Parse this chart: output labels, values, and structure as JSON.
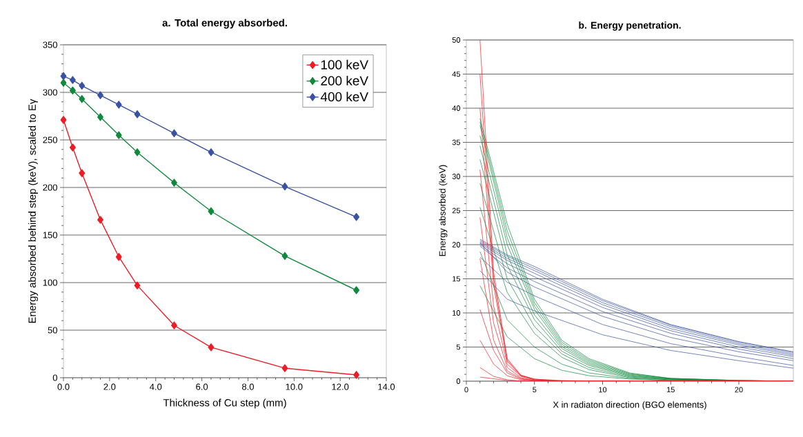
{
  "chart_data": [
    {
      "type": "line",
      "title": "a. Total energy absorbed.",
      "xlabel": "Thickness of Cu step (mm)",
      "ylabel": "Energy absorbed behind step (keV), scaled to Eγ",
      "x": [
        0,
        0.4,
        0.8,
        1.6,
        2.4,
        3.2,
        4.8,
        6.4,
        9.6,
        12.7
      ],
      "series": [
        {
          "name": "100 keV",
          "color": "#ee1c25",
          "values": [
            271,
            242,
            215,
            166,
            127,
            97,
            55,
            32,
            10,
            3
          ]
        },
        {
          "name": "200 keV",
          "color": "#0f8a3c",
          "values": [
            310,
            302,
            293,
            274,
            255,
            237,
            205,
            175,
            128,
            92
          ]
        },
        {
          "name": "400 keV",
          "color": "#3a52a4",
          "values": [
            317,
            313,
            307,
            297,
            287,
            277,
            257,
            237,
            201,
            169
          ]
        }
      ],
      "xlim": [
        0,
        14
      ],
      "ylim": [
        0,
        350
      ],
      "xticks": [
        {
          "value": 0,
          "label": "0.0"
        },
        {
          "value": 2,
          "label": "2.0"
        },
        {
          "value": 4,
          "label": "4.0"
        },
        {
          "value": 6,
          "label": "6.0"
        },
        {
          "value": 8,
          "label": "8.0"
        },
        {
          "value": 10,
          "label": "10.0"
        },
        {
          "value": 12,
          "label": "12.0"
        },
        {
          "value": 14,
          "label": "14.0"
        }
      ],
      "yticks": [
        0,
        50,
        100,
        150,
        200,
        250,
        300,
        350
      ],
      "grid": "y",
      "legend": "top right",
      "marker": "diamond",
      "line_style": "solid"
    },
    {
      "type": "line",
      "title": "b. Energy penetration.",
      "xlabel": "X in radiaton direction (BGO elements)",
      "ylabel": "Energy absorbed (keV)",
      "series": [
        {
          "color": "#ee1c25",
          "x": [
            1,
            2,
            3,
            4,
            5,
            7,
            10,
            24
          ],
          "values": [
            50,
            16,
            3.3,
            0.9,
            0.3,
            0.1,
            0,
            0
          ]
        },
        {
          "color": "#ee1c25",
          "x": [
            1,
            2,
            3,
            4,
            5,
            7,
            10,
            24
          ],
          "values": [
            45,
            15,
            3.1,
            0.8,
            0.3,
            0,
            0,
            0
          ]
        },
        {
          "color": "#ee1c25",
          "x": [
            1,
            2,
            3,
            4,
            5,
            7,
            10,
            24
          ],
          "values": [
            40,
            14,
            2.9,
            0.8,
            0.2,
            0,
            0,
            0
          ]
        },
        {
          "color": "#ee1c25",
          "x": [
            1,
            2,
            3,
            4,
            5,
            7,
            10,
            24
          ],
          "values": [
            31,
            11,
            2.5,
            0.7,
            0.2,
            0,
            0,
            0
          ]
        },
        {
          "color": "#ee1c25",
          "x": [
            1,
            2,
            3,
            4,
            5,
            7,
            10,
            24
          ],
          "values": [
            24,
            8.5,
            2,
            0.5,
            0.1,
            0,
            0,
            0
          ]
        },
        {
          "color": "#ee1c25",
          "x": [
            1,
            2,
            3,
            4,
            5,
            7,
            10,
            24
          ],
          "values": [
            18,
            6,
            1.5,
            0.4,
            0.1,
            0,
            0,
            0
          ]
        },
        {
          "color": "#ee1c25",
          "x": [
            1,
            2,
            3,
            4,
            5,
            7,
            10,
            24
          ],
          "values": [
            10.5,
            4.5,
            1.2,
            0.3,
            0.1,
            0,
            0,
            0
          ]
        },
        {
          "color": "#ee1c25",
          "x": [
            1,
            2,
            3,
            4,
            5,
            7,
            10,
            24
          ],
          "values": [
            6,
            2.5,
            0.8,
            0.2,
            0,
            0,
            0,
            0
          ]
        },
        {
          "color": "#ee1c25",
          "x": [
            1,
            2,
            3,
            4
          ],
          "values": [
            2,
            0.7,
            0.2,
            0
          ]
        },
        {
          "color": "#ee1c25",
          "x": [
            1,
            3,
            5
          ],
          "values": [
            0.6,
            0.1,
            0
          ]
        },
        {
          "color": "#0f8a3c",
          "x": [
            1,
            3,
            5,
            7,
            9,
            12,
            15,
            20,
            24
          ],
          "values": [
            38.5,
            23,
            12,
            6,
            3.3,
            1.2,
            0.4,
            0.1,
            0
          ]
        },
        {
          "color": "#0f8a3c",
          "x": [
            1,
            3,
            5,
            7,
            9,
            12,
            15,
            20,
            24
          ],
          "values": [
            38,
            22,
            11.5,
            5.7,
            3.1,
            1.1,
            0.4,
            0.1,
            0
          ]
        },
        {
          "color": "#0f8a3c",
          "x": [
            1,
            3,
            5,
            7,
            9,
            12,
            15,
            20,
            24
          ],
          "values": [
            37.5,
            21,
            11,
            5.4,
            2.9,
            1,
            0.4,
            0.1,
            0
          ]
        },
        {
          "color": "#0f8a3c",
          "x": [
            1,
            3,
            5,
            7,
            9,
            12,
            15,
            20,
            24
          ],
          "values": [
            36,
            20,
            10.5,
            5.1,
            2.7,
            0.9,
            0.3,
            0.1,
            0
          ]
        },
        {
          "color": "#0f8a3c",
          "x": [
            1,
            3,
            5,
            7,
            9,
            12,
            15,
            20,
            24
          ],
          "values": [
            34.5,
            18.5,
            9.7,
            4.8,
            2.5,
            0.8,
            0.3,
            0,
            0
          ]
        },
        {
          "color": "#0f8a3c",
          "x": [
            1,
            3,
            5,
            7,
            9,
            12,
            15,
            20,
            24
          ],
          "values": [
            32.5,
            17,
            9,
            4.4,
            2.3,
            0.7,
            0.3,
            0,
            0
          ]
        },
        {
          "color": "#0f8a3c",
          "x": [
            1,
            3,
            5,
            7,
            9,
            12,
            15,
            20,
            24
          ],
          "values": [
            29,
            15,
            8,
            4,
            2,
            0.6,
            0.2,
            0,
            0
          ]
        },
        {
          "color": "#0f8a3c",
          "x": [
            1,
            3,
            5,
            7,
            9,
            12,
            15,
            20,
            24
          ],
          "values": [
            25.5,
            13,
            7,
            3.5,
            1.7,
            0.5,
            0.2,
            0,
            0
          ]
        },
        {
          "color": "#0f8a3c",
          "x": [
            1,
            3,
            5,
            7,
            9,
            12,
            15,
            20,
            24
          ],
          "values": [
            19,
            9,
            5,
            2.5,
            1.2,
            0.4,
            0.1,
            0,
            0
          ]
        },
        {
          "color": "#0f8a3c",
          "x": [
            1,
            3,
            5,
            7,
            9,
            12,
            15,
            20,
            24
          ],
          "values": [
            14,
            6.5,
            3.3,
            1.6,
            0.8,
            0.3,
            0.1,
            0,
            0
          ]
        },
        {
          "color": "#3a52a4",
          "x": [
            1,
            3,
            5,
            10,
            15,
            20,
            24
          ],
          "values": [
            20.8,
            18.5,
            16.8,
            12,
            8.3,
            5.8,
            4.3
          ]
        },
        {
          "color": "#3a52a4",
          "x": [
            1,
            3,
            5,
            10,
            15,
            20,
            24
          ],
          "values": [
            20.6,
            18.3,
            16.5,
            11.8,
            8.2,
            5.7,
            4.2
          ]
        },
        {
          "color": "#3a52a4",
          "x": [
            1,
            3,
            5,
            10,
            15,
            20,
            24
          ],
          "values": [
            20.4,
            18,
            16.2,
            11.5,
            8,
            5.5,
            4
          ]
        },
        {
          "color": "#3a52a4",
          "x": [
            1,
            3,
            5,
            10,
            15,
            20,
            24
          ],
          "values": [
            20.2,
            17.7,
            15.8,
            11.2,
            7.7,
            5.3,
            3.8
          ]
        },
        {
          "color": "#3a52a4",
          "x": [
            1,
            3,
            5,
            10,
            15,
            20,
            24
          ],
          "values": [
            20,
            17.2,
            15.3,
            10.8,
            7.4,
            5,
            3.6
          ]
        },
        {
          "color": "#3a52a4",
          "x": [
            1,
            3,
            5,
            10,
            15,
            20,
            24
          ],
          "values": [
            19.8,
            16.6,
            14.6,
            10.2,
            7,
            4.7,
            3.3
          ]
        },
        {
          "color": "#3a52a4",
          "x": [
            1,
            3,
            5,
            10,
            15,
            20,
            24
          ],
          "values": [
            20.3,
            16,
            13.8,
            9.5,
            6.4,
            4.3,
            3
          ]
        },
        {
          "color": "#3a52a4",
          "x": [
            1,
            3,
            5,
            10,
            15,
            20,
            24
          ],
          "values": [
            18.2,
            14.5,
            12.5,
            8.3,
            5.5,
            3.6,
            2.3
          ]
        },
        {
          "color": "#3a52a4",
          "x": [
            1,
            3,
            5,
            10,
            15,
            20,
            24
          ],
          "values": [
            16.2,
            12,
            10.3,
            6.8,
            4.5,
            3,
            1.9
          ]
        }
      ],
      "xlim": [
        0,
        24
      ],
      "ylim": [
        0,
        50
      ],
      "xticks": [
        0,
        5,
        10,
        15,
        20
      ],
      "yticks": [
        0,
        5,
        10,
        15,
        20,
        25,
        30,
        35,
        40,
        45,
        50
      ],
      "grid": "y",
      "marker": "none",
      "line_style": "solid"
    }
  ]
}
